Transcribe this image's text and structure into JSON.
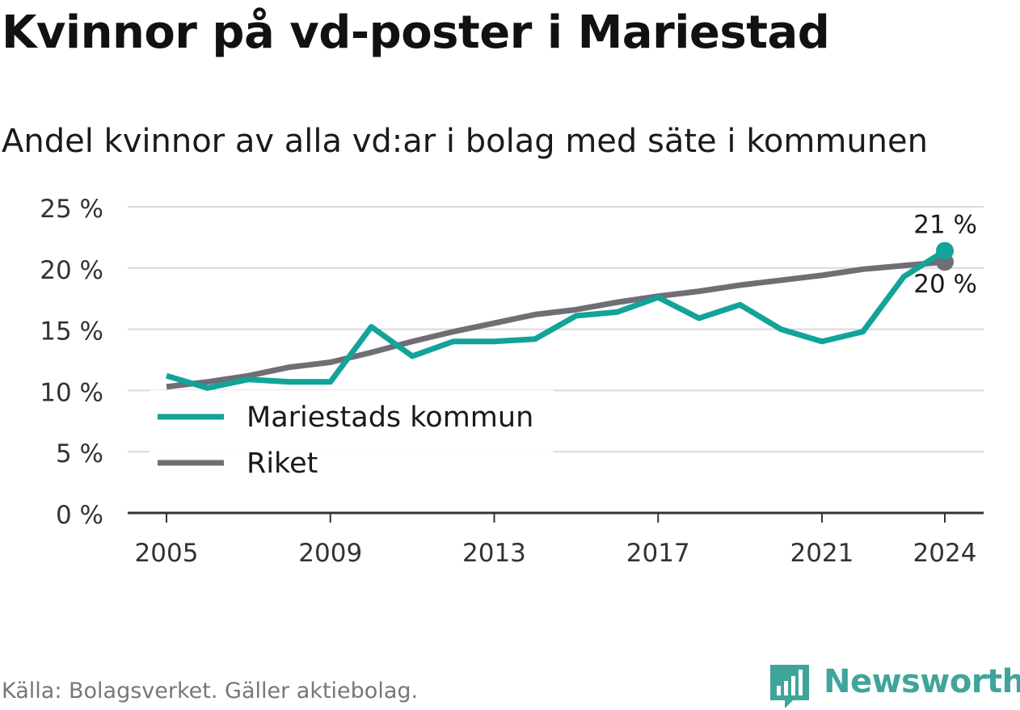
{
  "title": "Kvinnor på vd-poster i Mariestad",
  "subtitle": "Andel kvinnor av alla vd:ar i bolag med säte i kommunen",
  "source": "Källa: Bolagsverket. Gäller aktiebolag.",
  "brand": "Newsworthy",
  "colors": {
    "mariestad": "#12a399",
    "riket": "#6f6e75",
    "grid": "#d9d9d9",
    "axis": "#333333",
    "brand": "#3fa59b"
  },
  "chart_data": {
    "type": "line",
    "title": "Kvinnor på vd-poster i Mariestad",
    "subtitle": "Andel kvinnor av alla vd:ar i bolag med säte i kommunen",
    "x": [
      2005,
      2006,
      2007,
      2008,
      2009,
      2010,
      2011,
      2012,
      2013,
      2014,
      2015,
      2016,
      2017,
      2018,
      2019,
      2020,
      2021,
      2022,
      2023,
      2024
    ],
    "xticks": [
      2005,
      2009,
      2013,
      2017,
      2021,
      2024
    ],
    "xtick_labels": [
      "2005",
      "2009",
      "2013",
      "2017",
      "2021",
      "2024"
    ],
    "ylim": [
      0,
      25
    ],
    "yticks": [
      0,
      5,
      10,
      15,
      20,
      25
    ],
    "ytick_labels": [
      "0 %",
      "5 %",
      "10 %",
      "15 %",
      "20 %",
      "25 %"
    ],
    "grid": true,
    "legend_position": "bottom-left",
    "series": [
      {
        "name": "Mariestads kommun",
        "color": "#12a399",
        "values": [
          11.2,
          10.2,
          10.9,
          10.7,
          10.7,
          15.2,
          12.8,
          14.0,
          14.0,
          14.2,
          16.1,
          16.4,
          17.6,
          15.9,
          17.0,
          15.0,
          14.0,
          14.8,
          19.3,
          21.4
        ],
        "end_label": "21 %"
      },
      {
        "name": "Riket",
        "color": "#6f6e75",
        "values": [
          10.3,
          10.7,
          11.2,
          11.9,
          12.3,
          13.1,
          14.0,
          14.8,
          15.5,
          16.2,
          16.6,
          17.2,
          17.7,
          18.1,
          18.6,
          19.0,
          19.4,
          19.9,
          20.2,
          20.5
        ],
        "end_label": "20 %"
      }
    ]
  }
}
